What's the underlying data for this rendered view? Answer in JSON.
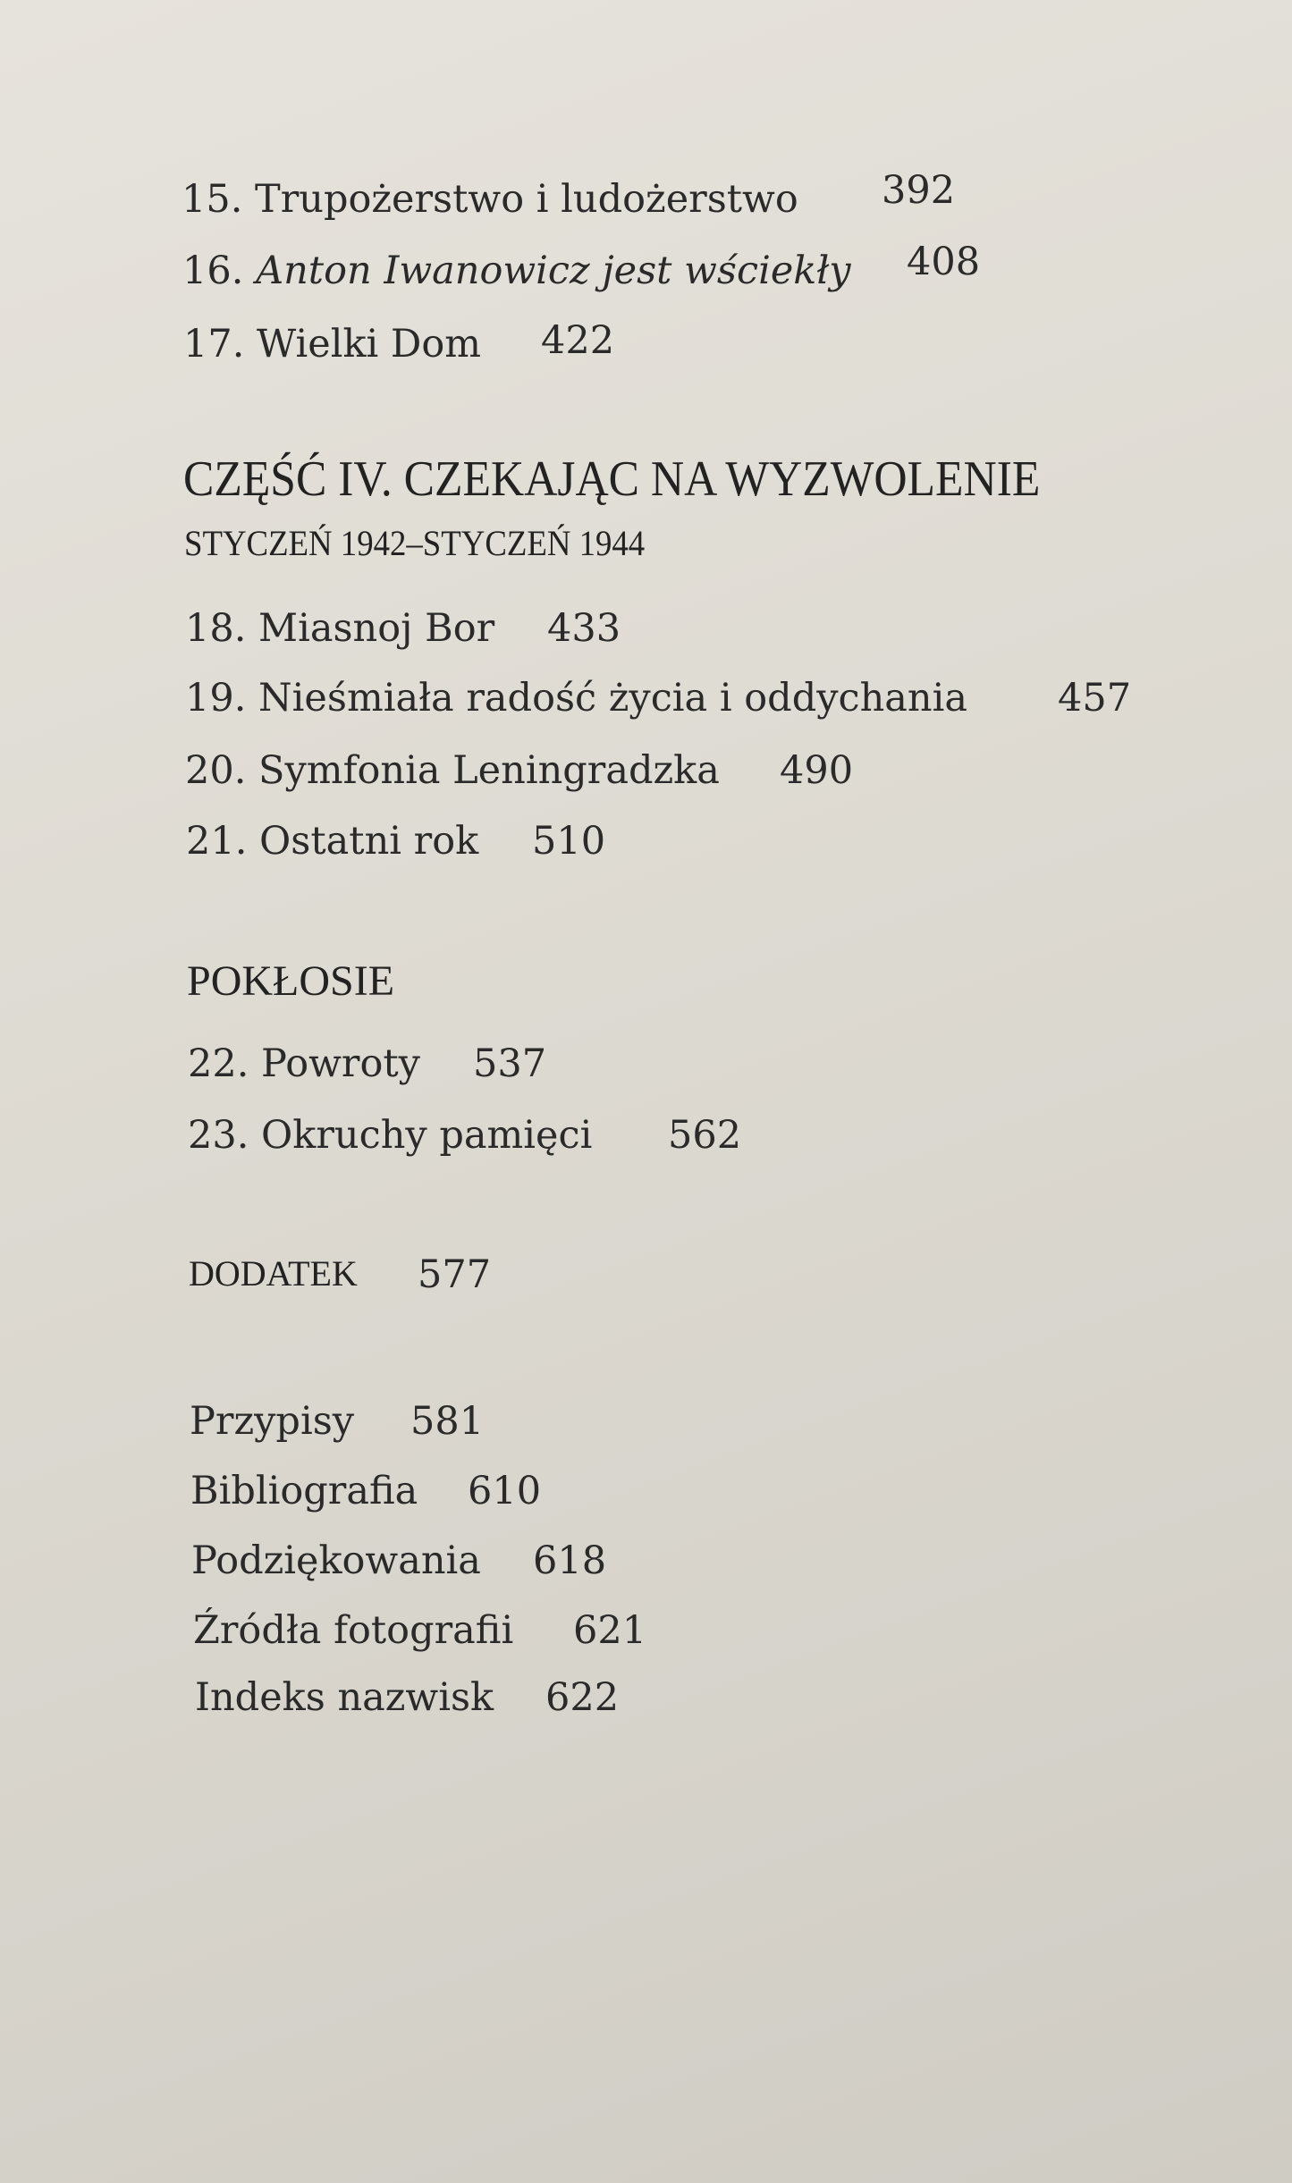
{
  "entries_part3": [
    {
      "label": "15. Trupożerstwo i ludożerstwo",
      "page": "392"
    },
    {
      "num": "16.",
      "label": "Anton Iwanowicz jest wściekły",
      "page": "408"
    },
    {
      "label": "17. Wielki Dom",
      "page": "422"
    }
  ],
  "part4": {
    "title": "CZĘŚĆ IV. CZEKAJĄC NA WYZWOLENIE",
    "subtitle": "STYCZEŃ 1942–STYCZEŃ 1944",
    "entries": [
      {
        "label": "18. Miasnoj Bor",
        "page": "433"
      },
      {
        "label": "19. Nieśmiała radość życia i oddychania",
        "page": "457"
      },
      {
        "label": "20. Symfonia Leningradzka",
        "page": "490"
      },
      {
        "label": "21. Ostatni rok",
        "page": "510"
      }
    ]
  },
  "aftermath": {
    "title": "POKŁOSIE",
    "entries": [
      {
        "label": "22. Powroty",
        "page": "537"
      },
      {
        "label": "23. Okruchy pamięci",
        "page": "562"
      }
    ]
  },
  "appendix": {
    "label": "DODATEK",
    "page": "577"
  },
  "back_matter": [
    {
      "label": "Przypisy",
      "page": "581"
    },
    {
      "label": "Bibliografia",
      "page": "610"
    },
    {
      "label": "Podziękowania",
      "page": "618"
    },
    {
      "label": "Źródła fotografii",
      "page": "621"
    },
    {
      "label": "Indeks nazwisk",
      "page": "622"
    }
  ]
}
